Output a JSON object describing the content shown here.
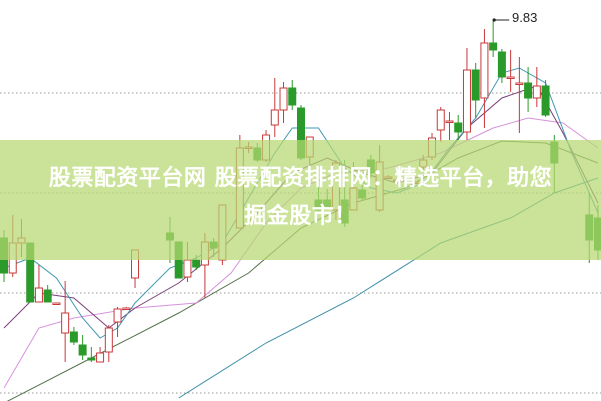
{
  "banner": {
    "line1": "股票配资平台网 股票配资排排网：精选平台，助您",
    "line2": "掘金股市！"
  },
  "chart_data": {
    "type": "candlestick",
    "title": "",
    "xlabel": "",
    "ylabel": "",
    "ylim": [
      6.02,
      10.03
    ],
    "grid": true,
    "gridlines": [
      9.1,
      8.1,
      7.1,
      6.1
    ],
    "colors": {
      "up": "#c8383a",
      "down": "#2a9a2a",
      "ma5": "#3f98b0",
      "ma10": "#7a3f78",
      "ma20": "#d692dc",
      "ma30": "#55704a",
      "ma60": "#3c8fa8",
      "banner": "#b6d870"
    },
    "high_annotation": {
      "label": "9.83",
      "index": 56,
      "value": 9.83
    },
    "candles": [
      [
        0,
        7.65,
        7.73,
        7.21,
        7.3
      ],
      [
        1,
        7.3,
        7.88,
        7.26,
        7.6
      ],
      [
        2,
        7.6,
        7.84,
        7.46,
        7.65
      ],
      [
        3,
        7.6,
        7.6,
        7.01,
        7.01
      ],
      [
        4,
        7.01,
        7.38,
        7.01,
        7.15
      ],
      [
        5,
        7.13,
        7.18,
        7.01,
        7.01
      ],
      [
        6,
        7.0,
        7.0,
        7.0,
        7.0
      ],
      [
        7,
        6.7,
        7.22,
        6.41,
        6.9
      ],
      [
        8,
        6.71,
        6.76,
        6.58,
        6.61
      ],
      [
        9,
        6.58,
        6.68,
        6.43,
        6.48
      ],
      [
        10,
        6.45,
        6.56,
        6.41,
        6.43
      ],
      [
        11,
        6.41,
        6.56,
        6.41,
        6.5
      ],
      [
        12,
        6.51,
        6.78,
        6.41,
        6.75
      ],
      [
        13,
        6.81,
        6.96,
        6.66,
        6.94
      ],
      [
        14,
        6.95,
        6.96,
        6.95,
        6.95
      ],
      [
        15,
        7.25,
        7.53,
        7.15,
        7.53
      ],
      [
        19,
        7.7,
        7.86,
        7.4,
        7.63
      ],
      [
        20,
        7.61,
        7.61,
        7.25,
        7.25
      ],
      [
        21,
        7.26,
        7.61,
        7.21,
        7.43
      ],
      [
        22,
        7.43,
        7.48,
        7.33,
        7.36
      ],
      [
        23,
        7.38,
        7.7,
        7.05,
        7.61
      ],
      [
        24,
        7.61,
        7.65,
        7.46,
        7.55
      ],
      [
        25,
        7.43,
        7.98,
        7.38,
        7.98
      ],
      [
        27,
        7.75,
        8.68,
        7.75,
        8.55
      ],
      [
        28,
        8.56,
        8.61,
        8.5,
        8.56
      ],
      [
        29,
        8.55,
        8.6,
        8.41,
        8.43
      ],
      [
        30,
        8.43,
        8.73,
        8.41,
        8.68
      ],
      [
        31,
        8.78,
        9.25,
        8.66,
        8.93
      ],
      [
        32,
        8.93,
        9.21,
        8.8,
        9.15
      ],
      [
        33,
        9.15,
        9.23,
        8.93,
        8.98
      ],
      [
        34,
        8.95,
        8.98,
        8.43,
        8.45
      ],
      [
        35,
        8.46,
        8.66,
        8.38,
        8.66
      ],
      [
        36,
        8.03,
        8.16,
        7.9,
        7.93
      ],
      [
        37,
        8.03,
        8.14,
        7.93,
        7.95
      ],
      [
        38,
        7.93,
        8.43,
        7.83,
        8.4
      ],
      [
        39,
        8.03,
        8.43,
        7.76,
        7.8
      ],
      [
        40,
        7.93,
        8.41,
        7.93,
        8.15
      ],
      [
        41,
        8.13,
        8.18,
        8.03,
        8.05
      ],
      [
        42,
        8.43,
        8.48,
        8.25,
        8.3
      ],
      [
        43,
        7.93,
        8.58,
        7.91,
        8.41
      ],
      [
        44,
        8.26,
        8.28,
        8.24,
        8.26
      ],
      [
        45,
        8.23,
        8.25,
        8.21,
        8.23
      ],
      [
        47,
        8.21,
        8.23,
        8.19,
        8.21
      ],
      [
        48,
        8.36,
        8.48,
        8.33,
        8.43
      ],
      [
        49,
        8.46,
        8.7,
        8.43,
        8.65
      ],
      [
        50,
        8.73,
        8.96,
        8.61,
        8.93
      ],
      [
        51,
        8.82,
        8.91,
        8.63,
        8.82
      ],
      [
        52,
        8.8,
        8.88,
        8.63,
        8.71
      ],
      [
        53,
        8.71,
        9.55,
        8.63,
        9.33
      ],
      [
        54,
        9.33,
        9.4,
        8.85,
        9.03
      ],
      [
        55,
        9.05,
        9.74,
        8.75,
        9.6
      ],
      [
        56,
        9.6,
        9.83,
        9.46,
        9.53
      ],
      [
        57,
        9.51,
        9.54,
        9.2,
        9.26
      ],
      [
        58,
        9.26,
        9.53,
        9.11,
        9.26
      ],
      [
        59,
        9.2,
        9.46,
        8.7,
        9.2
      ],
      [
        60,
        9.2,
        9.36,
        8.91,
        9.05
      ],
      [
        61,
        9.05,
        9.36,
        8.96,
        9.17
      ],
      [
        62,
        9.17,
        9.23,
        8.86,
        8.88
      ],
      [
        63,
        8.61,
        8.68,
        8.1,
        8.4
      ],
      [
        67,
        7.88,
        8.1,
        7.4,
        7.63
      ],
      [
        68,
        7.85,
        7.98,
        7.43,
        7.53
      ]
    ],
    "moving_averages": [
      {
        "key": "ma5",
        "points": [
          [
            0,
            7.35
          ],
          [
            3,
            7.45
          ],
          [
            6,
            7.25
          ],
          [
            9,
            6.85
          ],
          [
            11,
            6.65
          ],
          [
            13,
            6.75
          ],
          [
            15,
            7.0
          ],
          [
            19,
            7.35
          ],
          [
            22,
            7.45
          ],
          [
            25,
            7.6
          ],
          [
            28,
            8.05
          ],
          [
            31,
            8.5
          ],
          [
            33,
            8.75
          ],
          [
            36,
            8.75
          ],
          [
            39,
            8.35
          ],
          [
            42,
            8.15
          ],
          [
            45,
            8.1
          ],
          [
            48,
            8.2
          ],
          [
            51,
            8.55
          ],
          [
            54,
            8.85
          ],
          [
            57,
            9.3
          ],
          [
            59,
            9.35
          ],
          [
            62,
            9.2
          ],
          [
            65,
            8.5
          ],
          [
            68,
            7.9
          ]
        ]
      },
      {
        "key": "ma10",
        "points": [
          [
            0,
            6.75
          ],
          [
            4,
            7.1
          ],
          [
            8,
            7.05
          ],
          [
            12,
            6.75
          ],
          [
            15,
            6.95
          ],
          [
            20,
            7.2
          ],
          [
            25,
            7.55
          ],
          [
            29,
            7.9
          ],
          [
            33,
            8.3
          ],
          [
            37,
            8.45
          ],
          [
            41,
            8.3
          ],
          [
            45,
            8.2
          ],
          [
            49,
            8.3
          ],
          [
            53,
            8.75
          ],
          [
            57,
            9.05
          ],
          [
            61,
            9.17
          ],
          [
            64,
            8.7
          ],
          [
            68,
            8.0
          ]
        ]
      },
      {
        "key": "ma20",
        "points": [
          [
            0,
            6.15
          ],
          [
            4,
            6.75
          ],
          [
            8,
            6.85
          ],
          [
            15,
            6.95
          ],
          [
            22,
            7.0
          ],
          [
            26,
            7.3
          ],
          [
            30,
            7.8
          ],
          [
            34,
            8.15
          ],
          [
            38,
            8.3
          ],
          [
            44,
            8.35
          ],
          [
            50,
            8.5
          ],
          [
            56,
            8.75
          ],
          [
            60,
            8.85
          ],
          [
            64,
            8.8
          ],
          [
            68,
            8.55
          ]
        ]
      },
      {
        "key": "ma30",
        "points": [
          [
            0,
            6.0
          ],
          [
            10,
            6.45
          ],
          [
            20,
            6.9
          ],
          [
            28,
            7.3
          ],
          [
            34,
            7.75
          ],
          [
            40,
            8.0
          ],
          [
            46,
            8.15
          ],
          [
            52,
            8.45
          ],
          [
            57,
            8.62
          ],
          [
            62,
            8.6
          ],
          [
            68,
            8.4
          ]
        ]
      },
      {
        "key": "ma60",
        "points": [
          [
            20,
            6.05
          ],
          [
            30,
            6.6
          ],
          [
            40,
            7.05
          ],
          [
            50,
            7.6
          ],
          [
            58,
            7.85
          ],
          [
            63,
            8.1
          ],
          [
            68,
            8.25
          ]
        ]
      }
    ]
  }
}
